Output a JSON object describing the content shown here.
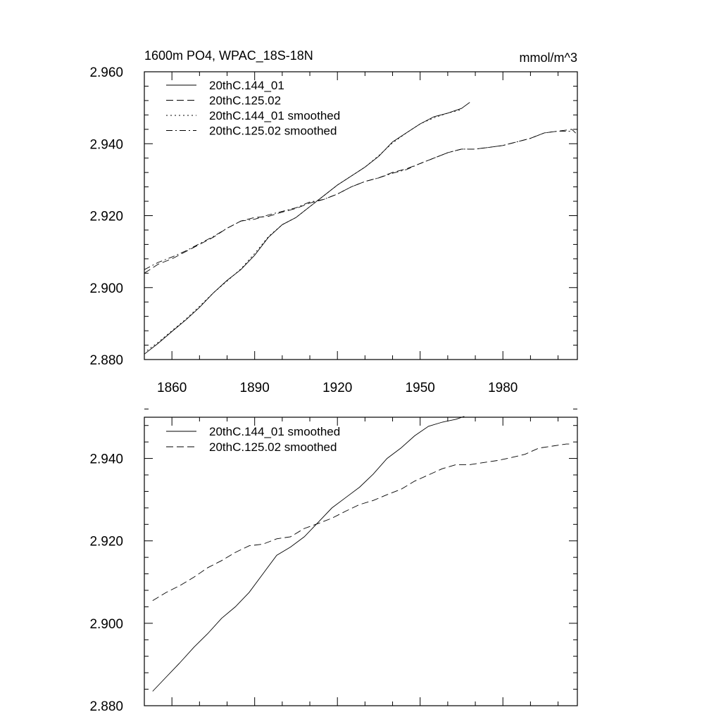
{
  "chart_data": [
    {
      "type": "line",
      "title": "1600m PO4, WPAC_18S-18N",
      "units": "mmol/m^3",
      "xlim": [
        1850,
        2007
      ],
      "ylim": [
        2.88,
        2.96
      ],
      "yticks": [
        "2.880",
        "2.900",
        "2.920",
        "2.940",
        "2.960"
      ],
      "xticks": [
        "1860",
        "1890",
        "1920",
        "1950",
        "1980"
      ],
      "legend_position": "top-left",
      "series": [
        {
          "name": "20thC.144_01",
          "style": "solid",
          "x": [
            1850,
            1855,
            1860,
            1865,
            1870,
            1875,
            1880,
            1885,
            1890,
            1895,
            1900,
            1905,
            1910,
            1915,
            1920,
            1925,
            1930,
            1935,
            1940,
            1945,
            1950,
            1955,
            1960,
            1965,
            1968
          ],
          "y": [
            2.8815,
            2.8845,
            2.8878,
            2.891,
            2.8945,
            2.8985,
            2.902,
            2.905,
            2.909,
            2.914,
            2.9175,
            2.9195,
            2.9225,
            2.9255,
            2.9285,
            2.931,
            2.9335,
            2.9365,
            2.9405,
            2.943,
            2.9455,
            2.9475,
            2.9485,
            2.9498,
            2.9515
          ]
        },
        {
          "name": "20thC.125.02",
          "style": "dashed",
          "x": [
            1850,
            1855,
            1860,
            1865,
            1870,
            1875,
            1880,
            1885,
            1890,
            1895,
            1900,
            1905,
            1910,
            1915,
            1920,
            1925,
            1930,
            1935,
            1940,
            1945,
            1950,
            1955,
            1960,
            1965,
            1970,
            1975,
            1980,
            1985,
            1990,
            1995,
            2000,
            2005,
            2007
          ],
          "y": [
            2.904,
            2.9065,
            2.908,
            2.91,
            2.912,
            2.914,
            2.9165,
            2.9185,
            2.9195,
            2.9198,
            2.921,
            2.922,
            2.9235,
            2.9245,
            2.926,
            2.928,
            2.9295,
            2.9305,
            2.932,
            2.933,
            2.9345,
            2.936,
            2.9375,
            2.9385,
            2.9385,
            2.939,
            2.9395,
            2.9405,
            2.9415,
            2.943,
            2.9435,
            2.944,
            2.9425
          ]
        },
        {
          "name": "20thC.144_01 smoothed",
          "style": "dotted",
          "x": [
            1851,
            1855,
            1860,
            1865,
            1870,
            1875,
            1880,
            1885,
            1890,
            1895,
            1900,
            1905,
            1910,
            1915,
            1920,
            1925,
            1930,
            1935,
            1940,
            1945,
            1950,
            1955,
            1960,
            1965
          ],
          "y": [
            2.8825,
            2.8848,
            2.888,
            2.8912,
            2.8948,
            2.8985,
            2.9018,
            2.9052,
            2.9095,
            2.9142,
            2.9175,
            2.9195,
            2.9225,
            2.9255,
            2.9285,
            2.931,
            2.9335,
            2.9367,
            2.9402,
            2.943,
            2.9455,
            2.9472,
            2.9485,
            2.9495
          ]
        },
        {
          "name": "20thC.125.02 smoothed",
          "style": "dashdot",
          "x": [
            1850,
            1855,
            1860,
            1865,
            1870,
            1875,
            1880,
            1885,
            1890,
            1895,
            1900,
            1905,
            1910,
            1915,
            1920,
            1925,
            1930,
            1935,
            1940,
            1945,
            1950,
            1955,
            1960,
            1965,
            1970,
            1975,
            1980,
            1985,
            1990,
            1995,
            2000,
            2005
          ],
          "y": [
            2.905,
            2.907,
            2.9085,
            2.9102,
            2.9122,
            2.9142,
            2.9165,
            2.9185,
            2.919,
            2.9202,
            2.9212,
            2.9222,
            2.9238,
            2.9245,
            2.926,
            2.928,
            2.9295,
            2.9305,
            2.9318,
            2.9328,
            2.9345,
            2.936,
            2.9375,
            2.9385,
            2.9385,
            2.939,
            2.9395,
            2.9405,
            2.9415,
            2.943,
            2.9435,
            2.9435
          ]
        }
      ]
    },
    {
      "type": "line",
      "title": "",
      "xlim": [
        1850,
        2007
      ],
      "ylim": [
        2.88,
        2.95
      ],
      "yticks": [
        "2.880",
        "2.900",
        "2.920",
        "2.940"
      ],
      "xticks": [
        "1860",
        "1890",
        "1920",
        "1950",
        "1980"
      ],
      "legend_position": "top-left",
      "series": [
        {
          "name": "20thC.144_01 smoothed",
          "style": "solid",
          "x": [
            1853,
            1858,
            1863,
            1868,
            1873,
            1878,
            1883,
            1888,
            1893,
            1898,
            1903,
            1908,
            1913,
            1918,
            1923,
            1928,
            1933,
            1938,
            1943,
            1948,
            1953,
            1958,
            1963,
            1966
          ],
          "y": [
            2.8835,
            2.887,
            2.8905,
            2.8942,
            2.8975,
            2.9012,
            2.904,
            2.9075,
            2.912,
            2.9165,
            2.9185,
            2.921,
            2.9245,
            2.928,
            2.9305,
            2.933,
            2.9362,
            2.94,
            2.9425,
            2.9455,
            2.9478,
            2.9488,
            2.9495,
            2.9502
          ]
        },
        {
          "name": "20thC.125.02 smoothed",
          "style": "dashed",
          "x": [
            1853,
            1858,
            1863,
            1868,
            1873,
            1878,
            1883,
            1888,
            1893,
            1898,
            1903,
            1908,
            1913,
            1918,
            1923,
            1928,
            1933,
            1938,
            1943,
            1948,
            1953,
            1958,
            1963,
            1968,
            1973,
            1978,
            1983,
            1988,
            1993,
            1998,
            2003,
            2005
          ],
          "y": [
            2.9055,
            2.9075,
            2.9092,
            2.9112,
            2.9135,
            2.9152,
            2.9172,
            2.9188,
            2.9192,
            2.9205,
            2.921,
            2.923,
            2.9242,
            2.9255,
            2.9272,
            2.9288,
            2.9298,
            2.9312,
            2.9325,
            2.9345,
            2.936,
            2.9375,
            2.9385,
            2.9385,
            2.939,
            2.9395,
            2.9402,
            2.941,
            2.9425,
            2.943,
            2.9435,
            2.9435
          ]
        }
      ]
    }
  ]
}
